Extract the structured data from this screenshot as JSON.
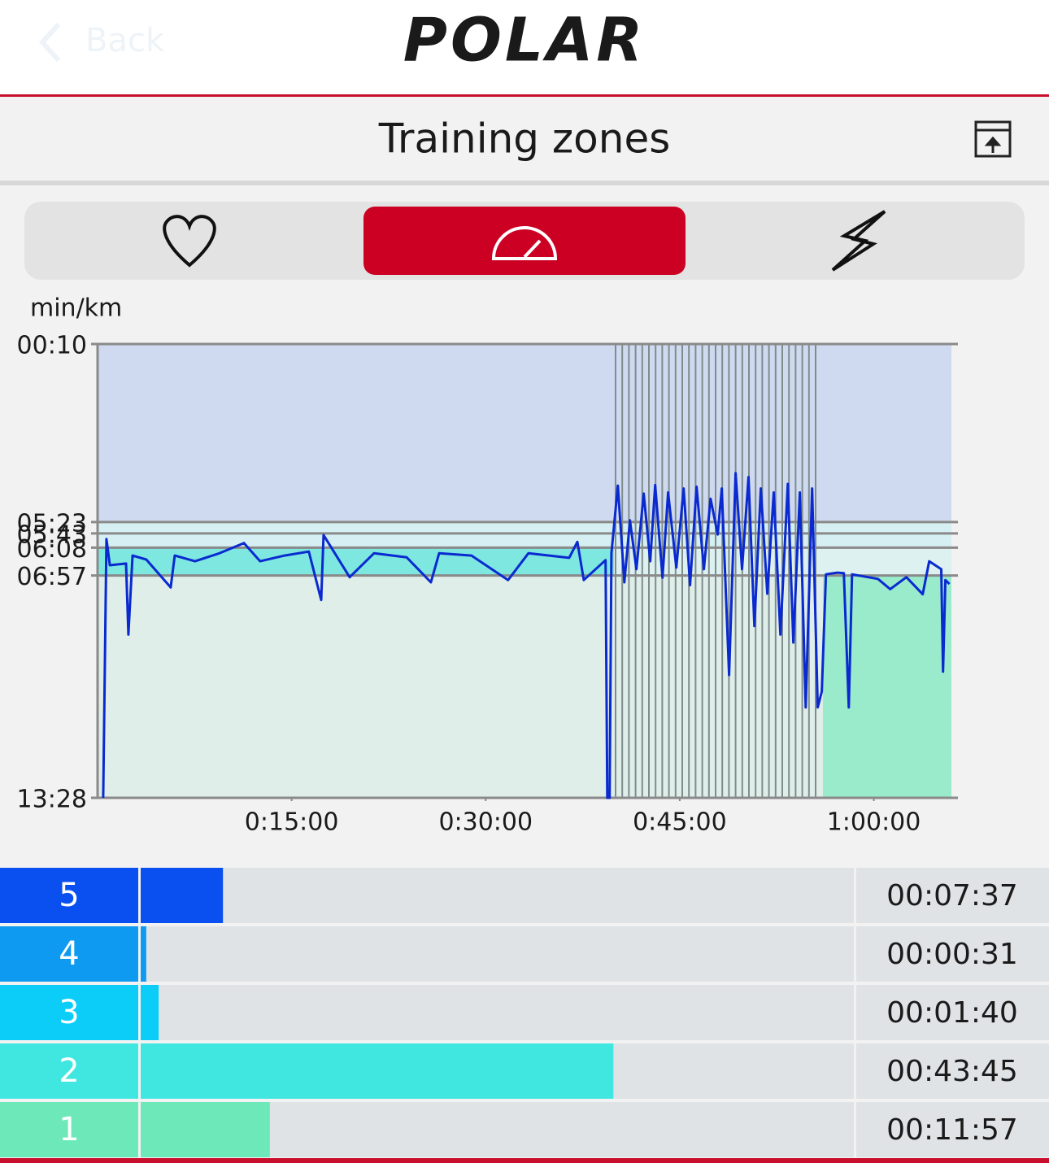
{
  "header": {
    "back": "Back",
    "logo": "POLAR",
    "title": "Training zones"
  },
  "chart_data": [
    {
      "type": "line",
      "y_label": "min/km",
      "color": "#0a2ad0",
      "xlim": [
        0,
        3960
      ],
      "xticks": [
        {
          "value": 900,
          "label": "0:15:00"
        },
        {
          "value": 1800,
          "label": "0:30:00"
        },
        {
          "value": 2700,
          "label": "0:45:00"
        },
        {
          "value": 3600,
          "label": "1:00:00"
        }
      ],
      "ylim": [
        10,
        808
      ],
      "yticks": [
        {
          "value": 10,
          "label": "00:10"
        },
        {
          "value": 323,
          "label": "05:23"
        },
        {
          "value": 343,
          "label": "05:43"
        },
        {
          "value": 368,
          "label": "06:08"
        },
        {
          "value": 417,
          "label": "06:57"
        },
        {
          "value": 808,
          "label": "13:28"
        }
      ],
      "band_colors": [
        "#cfdaf0",
        "#d6eff3",
        "#d6eff3",
        "#dcf1f0",
        "#dfeee9"
      ],
      "x": [
        26,
        41,
        57,
        132,
        143,
        162,
        226,
        339,
        358,
        452,
        565,
        679,
        754,
        867,
        980,
        1037,
        1048,
        1169,
        1282,
        1433,
        1546,
        1584,
        1734,
        1904,
        1998,
        2187,
        2225,
        2255,
        2356,
        2364,
        2375,
        2383,
        2413,
        2443,
        2469,
        2499,
        2533,
        2563,
        2586,
        2620,
        2646,
        2684,
        2718,
        2748,
        2778,
        2812,
        2843,
        2876,
        2895,
        2929,
        2959,
        2989,
        3019,
        3046,
        3076,
        3106,
        3136,
        3167,
        3201,
        3227,
        3257,
        3284,
        3314,
        3340,
        3359,
        3378,
        3431,
        3461,
        3484,
        3499,
        3619,
        3676,
        3751,
        3827,
        3857,
        3913,
        3921,
        3932,
        3951
      ],
      "values": [
        808,
        353,
        399,
        396,
        521,
        382,
        389,
        438,
        382,
        392,
        378,
        360,
        392,
        382,
        375,
        460,
        346,
        420,
        378,
        385,
        429,
        378,
        382,
        425,
        378,
        386,
        358,
        425,
        390,
        808,
        808,
        378,
        259,
        429,
        320,
        406,
        273,
        392,
        258,
        421,
        271,
        403,
        264,
        434,
        261,
        406,
        282,
        345,
        264,
        592,
        237,
        406,
        244,
        506,
        264,
        449,
        271,
        521,
        256,
        535,
        271,
        649,
        264,
        649,
        621,
        415,
        412,
        413,
        649,
        415,
        423,
        441,
        420,
        450,
        392,
        406,
        586,
        425,
        432
      ]
    },
    {
      "type": "bar",
      "categories": [
        "5",
        "4",
        "3",
        "2",
        "1"
      ],
      "values": [
        457,
        31,
        100,
        2625,
        717
      ],
      "value_labels": [
        "00:07:37",
        "00:00:31",
        "00:01:40",
        "00:43:45",
        "00:11:57"
      ],
      "colors": [
        "#0a50f0",
        "#0e9af0",
        "#0ccdf8",
        "#40e6e0",
        "#6de8b8"
      ],
      "xlim": [
        0,
        3960
      ]
    }
  ]
}
